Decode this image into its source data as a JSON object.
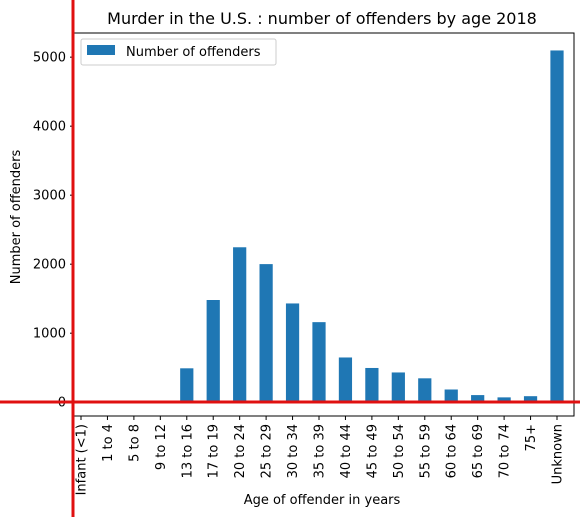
{
  "chart_data": {
    "type": "bar",
    "title": "Murder in the U.S. : number of offenders by age 2018",
    "xlabel": "Age of offender in years",
    "ylabel": "Number of offenders",
    "categories": [
      "Infant (<1)",
      "1 to 4",
      "5 to 8",
      "9 to 12",
      "13 to 16",
      "17 to 19",
      "20 to 24",
      "25 to 29",
      "30 to 34",
      "35 to 39",
      "40 to 44",
      "45 to 49",
      "50 to 54",
      "55 to 59",
      "60 to 64",
      "65 to 69",
      "70 to 74",
      "75+",
      "Unknown"
    ],
    "series": [
      {
        "name": "Number of offenders",
        "values": [
          0,
          3,
          4,
          22,
          491,
          1481,
          2245,
          2001,
          1431,
          1160,
          648,
          496,
          431,
          346,
          184,
          103,
          70,
          87,
          5097
        ]
      }
    ],
    "ylim": [
      -200,
      5350
    ],
    "yticks": [
      0,
      1000,
      2000,
      3000,
      4000,
      5000
    ],
    "grid": false,
    "legend": "upper left",
    "colors": {
      "bar": "#1f77b4",
      "reference_lines": "#e01010"
    }
  }
}
